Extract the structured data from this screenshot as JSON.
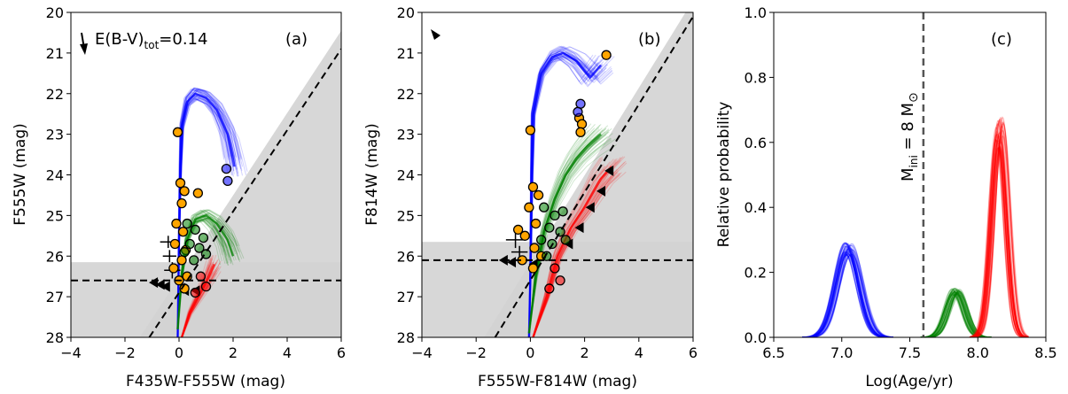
{
  "colors": {
    "blue": "#0000ff",
    "green": "#008000",
    "red": "#ff0000",
    "orange": "#ffa500",
    "excluded": "#d3d3d3",
    "marker_edge": "#000000",
    "vline": "#555555"
  },
  "chart_data": [
    {
      "id": "a",
      "type": "scatter",
      "panel_label": "(a)",
      "xlabel": "F435W-F555W (mag)",
      "ylabel": "F555W (mag)",
      "xlim": [
        -4,
        6
      ],
      "ylim": [
        28,
        20
      ],
      "xticks": [
        "−4",
        "−2",
        "0",
        "2",
        "4",
        "6"
      ],
      "yticks": [
        "20",
        "21",
        "22",
        "23",
        "24",
        "25",
        "26",
        "27",
        "28"
      ],
      "extinction_label": "E(B-V)",
      "extinction_subscript": "tot",
      "extinction_value": "=0.14",
      "limit_hline": 26.6,
      "limit_band_top": 26.15,
      "diag_line": [
        [
          -1.1,
          28
        ],
        [
          6.0,
          20.9
        ]
      ],
      "diag_band": [
        [
          -1.45,
          28
        ],
        [
          6.0,
          20.45
        ],
        [
          6.0,
          28
        ]
      ],
      "isochrones": [
        {
          "name": "blue",
          "color": "blue",
          "points": [
            [
              -0.05,
              28
            ],
            [
              0,
              25.5
            ],
            [
              0.05,
              23.8
            ],
            [
              0.1,
              22.8
            ],
            [
              0.3,
              22.2
            ],
            [
              0.6,
              22.0
            ],
            [
              1.0,
              22.1
            ],
            [
              1.4,
              22.4
            ],
            [
              1.8,
              23.0
            ],
            [
              2.05,
              23.8
            ]
          ]
        },
        {
          "name": "green",
          "color": "green",
          "points": [
            [
              -0.05,
              27.8
            ],
            [
              0.1,
              26.5
            ],
            [
              0.3,
              25.6
            ],
            [
              0.6,
              25.1
            ],
            [
              1.0,
              25.0
            ],
            [
              1.4,
              25.2
            ],
            [
              1.8,
              25.6
            ],
            [
              2.0,
              26.0
            ]
          ]
        },
        {
          "name": "red",
          "color": "red",
          "points": [
            [
              0.1,
              28
            ],
            [
              0.4,
              27.4
            ],
            [
              0.8,
              26.9
            ],
            [
              1.1,
              26.5
            ],
            [
              1.3,
              26.2
            ]
          ]
        }
      ],
      "points_blue": [
        [
          1.75,
          23.85
        ],
        [
          1.8,
          24.15
        ]
      ],
      "points_green": [
        [
          0.3,
          25.2
        ],
        [
          0.6,
          25.35
        ],
        [
          0.9,
          25.55
        ],
        [
          0.4,
          25.7
        ],
        [
          0.75,
          25.8
        ],
        [
          1.0,
          25.95
        ],
        [
          0.55,
          26.1
        ],
        [
          0.2,
          25.9
        ]
      ],
      "points_red": [
        [
          0.8,
          26.5
        ],
        [
          1.0,
          26.75
        ],
        [
          0.6,
          26.9
        ]
      ],
      "points_orange": [
        [
          -0.05,
          22.95
        ],
        [
          0.05,
          24.2
        ],
        [
          0.2,
          24.4
        ],
        [
          0.7,
          24.45
        ],
        [
          0.1,
          24.7
        ],
        [
          -0.1,
          25.2
        ],
        [
          0.15,
          25.4
        ],
        [
          -0.15,
          25.7
        ],
        [
          0.25,
          25.85
        ],
        [
          0.1,
          26.1
        ],
        [
          -0.2,
          26.3
        ],
        [
          0.3,
          26.5
        ],
        [
          0.0,
          26.6
        ],
        [
          0.2,
          26.8
        ]
      ],
      "upper_limits": [
        [
          -0.85,
          26.65
        ],
        [
          -0.6,
          26.7
        ],
        [
          -0.4,
          26.75
        ],
        [
          0.3,
          26.85
        ],
        [
          0.7,
          26.85
        ]
      ],
      "error_bars": [
        [
          -0.4,
          25.65,
          0.3,
          0.15
        ],
        [
          -0.35,
          26.0,
          0.25,
          0.15
        ],
        [
          -0.25,
          26.35,
          0.3,
          0.2
        ]
      ]
    },
    {
      "id": "b",
      "type": "scatter",
      "panel_label": "(b)",
      "xlabel": "F555W-F814W (mag)",
      "ylabel": "F814W (mag)",
      "xlim": [
        -4,
        6
      ],
      "ylim": [
        28,
        20
      ],
      "xticks": [
        "−4",
        "−2",
        "0",
        "2",
        "4",
        "6"
      ],
      "yticks": [
        "20",
        "21",
        "22",
        "23",
        "24",
        "25",
        "26",
        "27",
        "28"
      ],
      "limit_hline": 26.1,
      "limit_band_top": 25.65,
      "diag_line": [
        [
          -1.3,
          28
        ],
        [
          6.0,
          20.1
        ]
      ],
      "diag_band": [
        [
          -1.7,
          28
        ],
        [
          6.0,
          19.7
        ],
        [
          6.0,
          28
        ]
      ],
      "isochrones": [
        {
          "name": "blue",
          "color": "blue",
          "points": [
            [
              -0.05,
              28
            ],
            [
              0,
              26.5
            ],
            [
              0.05,
              24.0
            ],
            [
              0.1,
              22.5
            ],
            [
              0.4,
              21.5
            ],
            [
              0.8,
              21.1
            ],
            [
              1.2,
              21.0
            ],
            [
              1.7,
              21.2
            ],
            [
              2.2,
              21.6
            ],
            [
              2.6,
              21.3
            ]
          ]
        },
        {
          "name": "green",
          "color": "green",
          "points": [
            [
              -0.05,
              27.9
            ],
            [
              0.2,
              26.5
            ],
            [
              0.5,
              25.4
            ],
            [
              0.9,
              24.6
            ],
            [
              1.3,
              24.0
            ],
            [
              1.7,
              23.6
            ],
            [
              2.1,
              23.3
            ],
            [
              2.6,
              23.0
            ]
          ]
        },
        {
          "name": "red",
          "color": "red",
          "points": [
            [
              0.1,
              28
            ],
            [
              0.6,
              27.0
            ],
            [
              1.0,
              26.0
            ],
            [
              1.5,
              25.3
            ],
            [
              2.0,
              24.8
            ],
            [
              2.6,
              24.1
            ],
            [
              3.0,
              23.8
            ]
          ]
        }
      ],
      "points_blue": [
        [
          1.85,
          22.25
        ],
        [
          1.75,
          22.45
        ]
      ],
      "points_green": [
        [
          0.5,
          24.8
        ],
        [
          0.9,
          25.0
        ],
        [
          1.2,
          24.9
        ],
        [
          0.7,
          25.3
        ],
        [
          1.1,
          25.4
        ],
        [
          0.4,
          25.6
        ],
        [
          0.8,
          25.7
        ],
        [
          1.3,
          25.6
        ],
        [
          0.6,
          26.0
        ]
      ],
      "points_red": [
        [
          0.9,
          26.3
        ],
        [
          1.1,
          26.6
        ],
        [
          0.7,
          26.8
        ]
      ],
      "points_orange": [
        [
          0.0,
          22.9
        ],
        [
          1.8,
          22.6
        ],
        [
          1.9,
          22.75
        ],
        [
          1.85,
          22.95
        ],
        [
          2.8,
          21.05
        ],
        [
          0.1,
          24.3
        ],
        [
          0.3,
          24.5
        ],
        [
          -0.05,
          24.8
        ],
        [
          0.2,
          25.2
        ],
        [
          -0.2,
          25.5
        ],
        [
          0.15,
          25.8
        ],
        [
          -0.45,
          25.35
        ],
        [
          -0.3,
          26.1
        ],
        [
          0.1,
          26.3
        ],
        [
          0.4,
          26.0
        ]
      ],
      "upper_limits": [
        [
          -0.9,
          26.1
        ],
        [
          -0.6,
          26.15
        ],
        [
          0.2,
          26.2
        ],
        [
          1.5,
          25.7
        ],
        [
          1.9,
          25.3
        ],
        [
          2.3,
          24.8
        ],
        [
          2.7,
          24.4
        ],
        [
          3.0,
          23.9
        ]
      ],
      "error_bars": [
        [
          -0.55,
          25.6,
          0.35,
          0.2
        ],
        [
          -0.4,
          25.9,
          0.3,
          0.15
        ]
      ]
    },
    {
      "id": "c",
      "type": "line",
      "panel_label": "(c)",
      "xlabel": "Log(Age/yr)",
      "ylabel": "Relative probability",
      "xlim": [
        6.5,
        8.5
      ],
      "ylim": [
        0,
        1
      ],
      "xticks": [
        "6.5",
        "7.0",
        "7.5",
        "8.0",
        "8.5"
      ],
      "yticks": [
        "0.0",
        "0.2",
        "0.4",
        "0.6",
        "0.8",
        "1.0"
      ],
      "vline_x": 7.6,
      "vline_label_prefix": "M",
      "vline_label_sub": "ini",
      "vline_label_mid": " = 8 M",
      "vline_label_sun": "⊙",
      "series": [
        {
          "color": "blue",
          "mu": 7.05,
          "sigma": 0.085,
          "peak": 0.27
        },
        {
          "color": "green",
          "mu": 7.84,
          "sigma": 0.065,
          "peak": 0.14
        },
        {
          "color": "red",
          "mu": 8.16,
          "sigma": 0.055,
          "peak": 0.63
        }
      ]
    }
  ]
}
